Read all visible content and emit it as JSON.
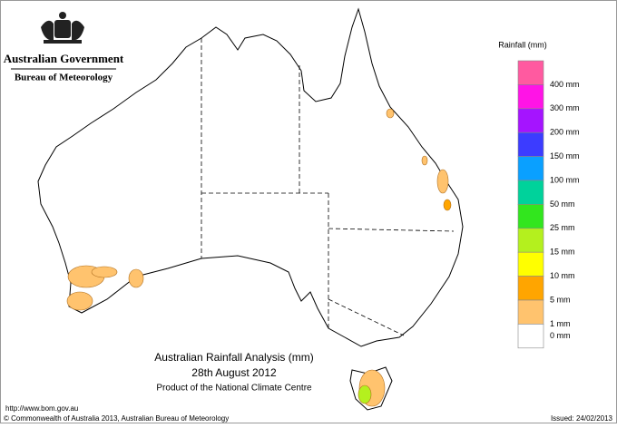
{
  "header": {
    "government": "Australian Government",
    "bureau": "Bureau of Meteorology"
  },
  "caption": {
    "title": "Australian Rainfall Analysis (mm)",
    "date": "28th August 2012",
    "product": "Product of the National Climate Centre"
  },
  "legend": {
    "title": "Rainfall (mm)",
    "colors": [
      "#ff5aa0",
      "#ff14e6",
      "#a514ff",
      "#3c3cff",
      "#0aa0ff",
      "#00d29b",
      "#32e61e",
      "#b4f01e",
      "#ffff00",
      "#ffa500",
      "#ffc36e",
      "#ffffff"
    ],
    "labels": [
      "400 mm",
      "300 mm",
      "200 mm",
      "150 mm",
      "100 mm",
      "50 mm",
      "25 mm",
      "15 mm",
      "10 mm",
      "5 mm",
      "1 mm",
      "0 mm"
    ]
  },
  "footer": {
    "url": "http://www.bom.gov.au",
    "copyright": "© Commonwealth of Australia 2013, Australian Bureau of Meteorology",
    "issued": "Issued: 24/02/2013"
  }
}
